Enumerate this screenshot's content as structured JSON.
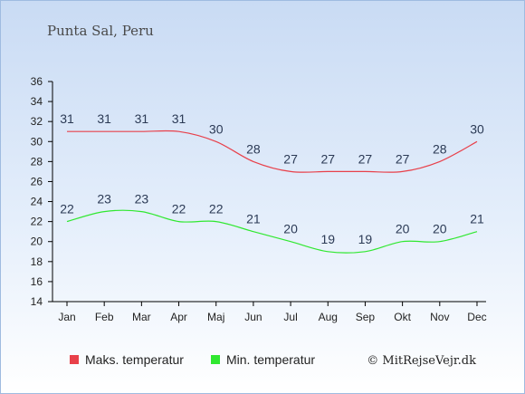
{
  "chart_data": {
    "type": "line",
    "title": "Punta Sal, Peru",
    "categories": [
      "Jan",
      "Feb",
      "Mar",
      "Apr",
      "Maj",
      "Jun",
      "Jul",
      "Aug",
      "Sep",
      "Okt",
      "Nov",
      "Dec"
    ],
    "series": [
      {
        "name": "Maks. temperatur",
        "color": "#e8404a",
        "values": [
          31,
          31,
          31,
          31,
          30,
          28,
          27,
          27,
          27,
          27,
          28,
          30
        ]
      },
      {
        "name": "Min. temperatur",
        "color": "#30e830",
        "values": [
          22,
          23,
          23,
          22,
          22,
          21,
          20,
          19,
          19,
          20,
          20,
          21
        ]
      }
    ],
    "ylim": [
      14,
      36
    ],
    "yticks": [
      14,
      16,
      18,
      20,
      22,
      24,
      26,
      28,
      30,
      32,
      34,
      36
    ],
    "grid": false,
    "legend": "bottom"
  },
  "copyright": "© MitRejseVejr.dk"
}
